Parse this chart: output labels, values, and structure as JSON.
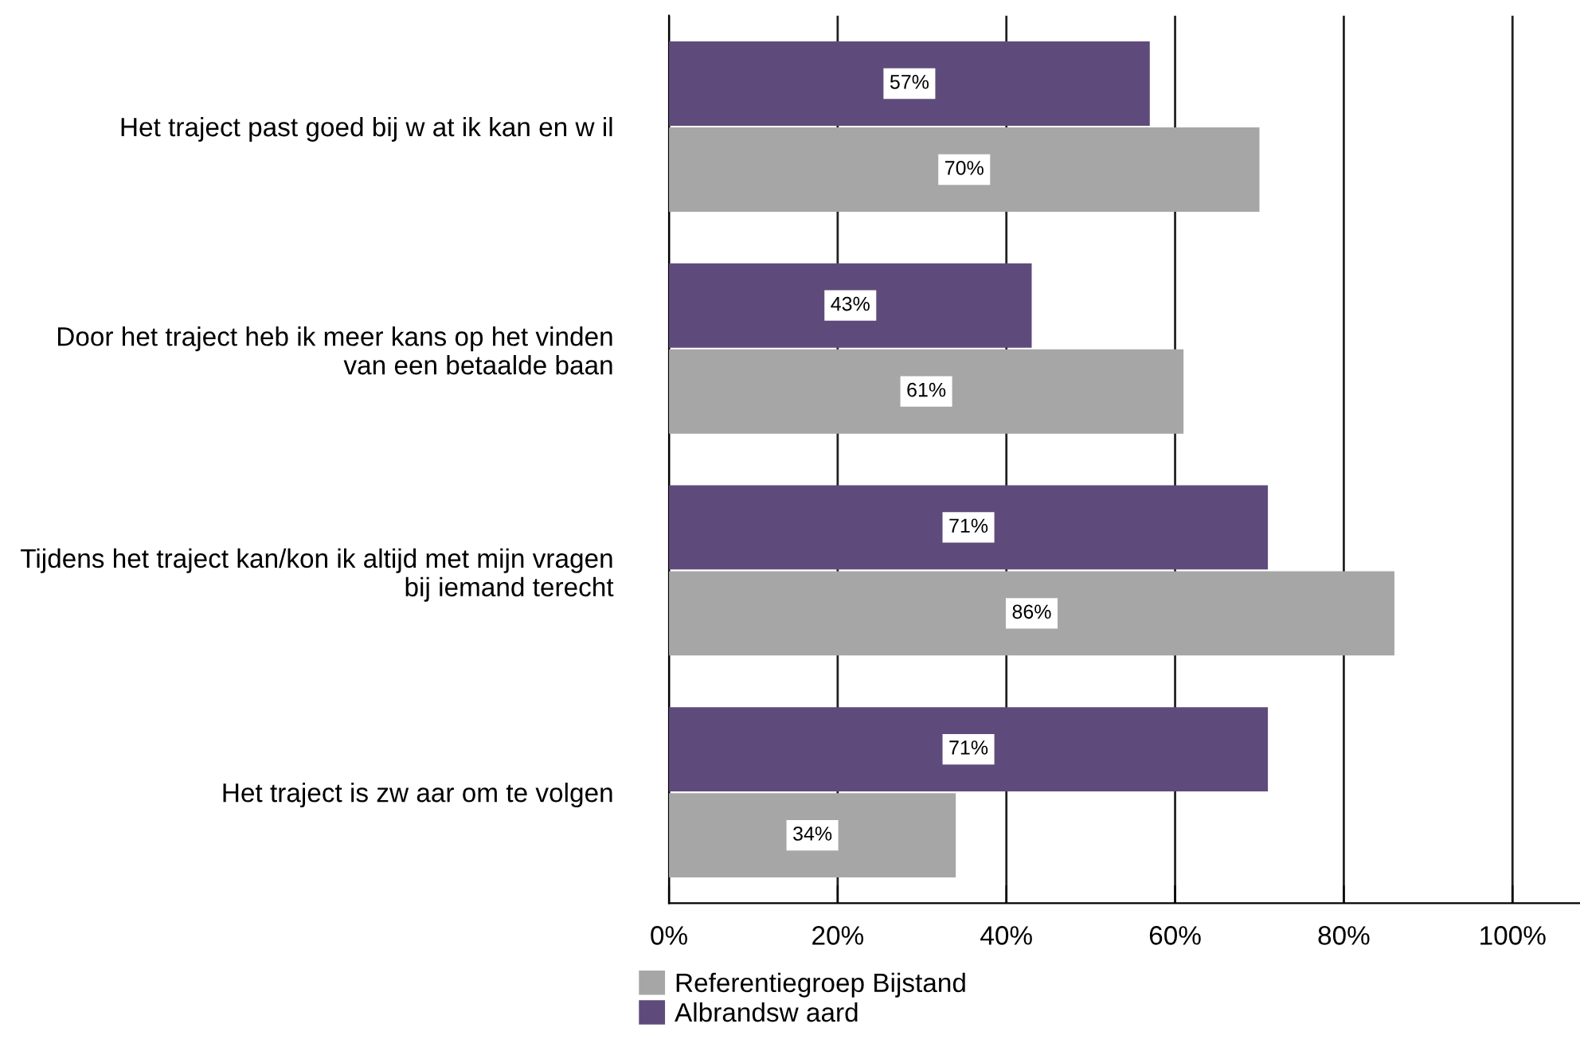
{
  "chart_data": {
    "type": "bar",
    "orientation": "horizontal",
    "categories": [
      "Het traject past goed bij w at ik kan en w il",
      "Door het traject heb ik meer kans op het vinden\nvan een betaalde baan",
      "Tijdens het traject kan/kon ik altijd met mijn vragen\nbij iemand terecht",
      "Het traject is zw aar om te volgen"
    ],
    "series": [
      {
        "name": "Albrandsw aard",
        "color": "#5f4b7b",
        "values": [
          57,
          43,
          71,
          71
        ],
        "value_labels": [
          "57%",
          "43%",
          "71%",
          "71%"
        ]
      },
      {
        "name": "Referentiegroep Bijstand",
        "color": "#a6a6a6",
        "values": [
          70,
          61,
          86,
          34
        ],
        "value_labels": [
          "70%",
          "61%",
          "86%",
          "34%"
        ]
      }
    ],
    "xlim": [
      0,
      108
    ],
    "xticks": [
      {
        "value": 0,
        "label": "0%"
      },
      {
        "value": 20,
        "label": "20%"
      },
      {
        "value": 40,
        "label": "40%"
      },
      {
        "value": 60,
        "label": "60%"
      },
      {
        "value": 80,
        "label": "80%"
      },
      {
        "value": 100,
        "label": "100%"
      }
    ],
    "grid": "x",
    "legend": "bottom"
  }
}
